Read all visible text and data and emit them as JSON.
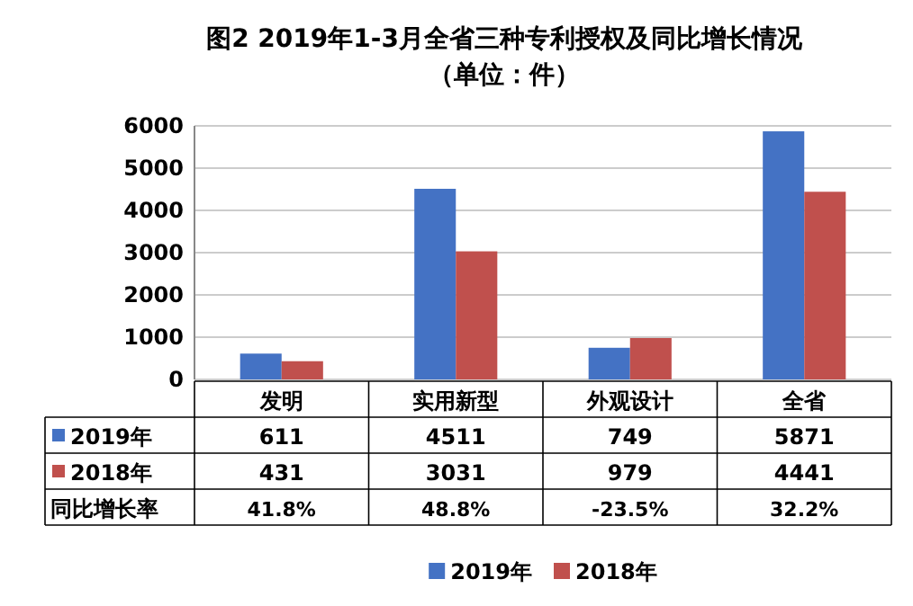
{
  "chart_data": {
    "type": "bar",
    "title": "图2 2019年1-3月全省三种专利授权及同比增长情况",
    "subtitle": "（单位：件）",
    "categories": [
      "发明",
      "实用新型",
      "外观设计",
      "全省"
    ],
    "series": [
      {
        "name": "2019年",
        "color": "#4472c4",
        "values": [
          611,
          4511,
          749,
          5871
        ]
      },
      {
        "name": "2018年",
        "color": "#c0504d",
        "values": [
          431,
          3031,
          979,
          4441
        ]
      }
    ],
    "ylim": [
      0,
      6000
    ],
    "yticks": [
      0,
      1000,
      2000,
      3000,
      4000,
      5000,
      6000
    ],
    "grid": "y",
    "legend": "bottom",
    "data_labels": true,
    "annotations": [
      "同比增长率",
      "41.8%",
      "48.8%",
      "-23.5%",
      "32.2%"
    ]
  }
}
